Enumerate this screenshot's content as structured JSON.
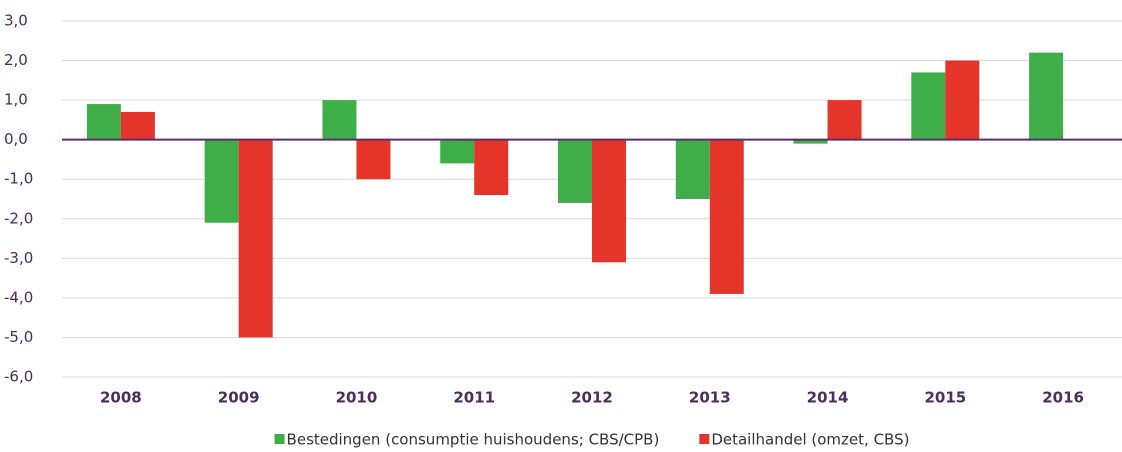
{
  "chart_data": {
    "type": "bar",
    "categories": [
      "2008",
      "2009",
      "2010",
      "2011",
      "2012",
      "2013",
      "2014",
      "2015",
      "2016"
    ],
    "series": [
      {
        "name": "Bestedingen (consumptie huishoudens; CBS/CPB)",
        "color": "#3fae49",
        "values": [
          0.9,
          -2.1,
          1.0,
          -0.6,
          -1.6,
          -1.5,
          -0.1,
          1.7,
          2.2
        ]
      },
      {
        "name": "Detailhandel (omzet, CBS)",
        "color": "#e5352a",
        "values": [
          0.7,
          -5.0,
          -1.0,
          -1.4,
          -3.1,
          -3.9,
          1.0,
          2.0,
          null
        ]
      }
    ],
    "ylim": [
      -6,
      3
    ],
    "yticks": [
      {
        "value": -6,
        "label": "-6,0"
      },
      {
        "value": -5,
        "label": "-5,0"
      },
      {
        "value": -4,
        "label": "-4,0"
      },
      {
        "value": -3,
        "label": "-3,0"
      },
      {
        "value": -2,
        "label": "-2,0"
      },
      {
        "value": -1,
        "label": "-1,0"
      },
      {
        "value": 0,
        "label": "0,0"
      },
      {
        "value": 1,
        "label": "1,0"
      },
      {
        "value": 2,
        "label": "2,0"
      },
      {
        "value": 3,
        "label": "3,0"
      }
    ],
    "grid": true,
    "legend": "bottom"
  }
}
